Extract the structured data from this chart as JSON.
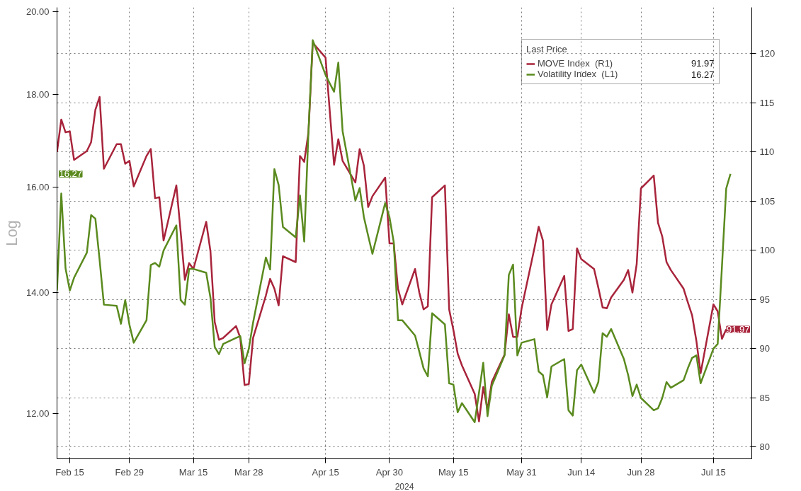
{
  "chart_data": {
    "type": "line",
    "xlabel": "2024",
    "ylabel": "Log",
    "legend_title": "Last Price",
    "legend": "top right",
    "grid": true,
    "log": true,
    "line_style": "solid",
    "marker": "none",
    "x": [
      "2024-02-12",
      "2024-02-13",
      "2024-02-14",
      "2024-02-15",
      "2024-02-16",
      "2024-02-19",
      "2024-02-20",
      "2024-02-21",
      "2024-02-22",
      "2024-02-23",
      "2024-02-26",
      "2024-02-27",
      "2024-02-28",
      "2024-02-29",
      "2024-03-01",
      "2024-03-04",
      "2024-03-05",
      "2024-03-06",
      "2024-03-07",
      "2024-03-08",
      "2024-03-11",
      "2024-03-12",
      "2024-03-13",
      "2024-03-14",
      "2024-03-15",
      "2024-03-18",
      "2024-03-19",
      "2024-03-20",
      "2024-03-21",
      "2024-03-22",
      "2024-03-25",
      "2024-03-26",
      "2024-03-27",
      "2024-03-28",
      "2024-03-29",
      "2024-04-01",
      "2024-04-02",
      "2024-04-03",
      "2024-04-04",
      "2024-04-05",
      "2024-04-08",
      "2024-04-09",
      "2024-04-10",
      "2024-04-11",
      "2024-04-12",
      "2024-04-15",
      "2024-04-16",
      "2024-04-17",
      "2024-04-18",
      "2024-04-19",
      "2024-04-22",
      "2024-04-23",
      "2024-04-24",
      "2024-04-25",
      "2024-04-26",
      "2024-04-29",
      "2024-04-30",
      "2024-05-01",
      "2024-05-02",
      "2024-05-03",
      "2024-05-06",
      "2024-05-07",
      "2024-05-08",
      "2024-05-09",
      "2024-05-10",
      "2024-05-13",
      "2024-05-14",
      "2024-05-15",
      "2024-05-16",
      "2024-05-17",
      "2024-05-20",
      "2024-05-21",
      "2024-05-22",
      "2024-05-23",
      "2024-05-24",
      "2024-05-27",
      "2024-05-28",
      "2024-05-29",
      "2024-05-30",
      "2024-05-31",
      "2024-06-03",
      "2024-06-04",
      "2024-06-05",
      "2024-06-06",
      "2024-06-07",
      "2024-06-10",
      "2024-06-11",
      "2024-06-12",
      "2024-06-13",
      "2024-06-14",
      "2024-06-17",
      "2024-06-18",
      "2024-06-19",
      "2024-06-20",
      "2024-06-21",
      "2024-06-24",
      "2024-06-25",
      "2024-06-26",
      "2024-06-27",
      "2024-06-28",
      "2024-07-01",
      "2024-07-02",
      "2024-07-03",
      "2024-07-04",
      "2024-07-05",
      "2024-07-08",
      "2024-07-09",
      "2024-07-10",
      "2024-07-11",
      "2024-07-12",
      "2024-07-15",
      "2024-07-16",
      "2024-07-17",
      "2024-07-18",
      "2024-07-19"
    ],
    "xlim": [
      "2024-02-12",
      "2024-07-24"
    ],
    "xticks": [
      {
        "value": "2024-02-15",
        "label": "Feb 15"
      },
      {
        "value": "2024-02-29",
        "label": "Feb 29"
      },
      {
        "value": "2024-03-15",
        "label": "Mar 15"
      },
      {
        "value": "2024-03-28",
        "label": "Mar 28"
      },
      {
        "value": "2024-04-15",
        "label": "Apr 15"
      },
      {
        "value": "2024-04-30",
        "label": "Apr 30"
      },
      {
        "value": "2024-05-15",
        "label": "May 15"
      },
      {
        "value": "2024-05-31",
        "label": "May 31"
      },
      {
        "value": "2024-06-14",
        "label": "Jun 14"
      },
      {
        "value": "2024-06-28",
        "label": "Jun 28"
      },
      {
        "value": "2024-07-15",
        "label": "Jul 15"
      }
    ],
    "ylim": [
      11.33,
      20.1
    ],
    "yticks": [
      {
        "value": 12,
        "label": "12.00"
      },
      {
        "value": 14,
        "label": "14.00"
      },
      {
        "value": 16,
        "label": "16.00"
      },
      {
        "value": 18,
        "label": "18.00"
      },
      {
        "value": 20,
        "label": "20.00"
      }
    ],
    "y2lim": [
      78.8,
      124.7
    ],
    "y2ticks": [
      80,
      85,
      90,
      95,
      100,
      105,
      110,
      115,
      120
    ],
    "series": [
      {
        "name": "MOVE Index  (R1)",
        "color": "#a8243b",
        "axis": "y2",
        "values": [
          110.0,
          113.3,
          112.0,
          112.1,
          109.2,
          110.1,
          111.0,
          114.3,
          115.6,
          108.3,
          110.8,
          110.8,
          108.8,
          109.1,
          106.5,
          109.6,
          110.3,
          105.3,
          105.4,
          101.0,
          106.6,
          101.9,
          97.0,
          98.7,
          98.1,
          102.9,
          99.9,
          92.7,
          90.9,
          91.1,
          92.3,
          91.1,
          86.3,
          86.4,
          91.1,
          95.4,
          97.1,
          96.1,
          94.4,
          99.4,
          98.8,
          109.6,
          109.0,
          112.0,
          121.1,
          119.6,
          114.1,
          108.7,
          111.3,
          109.1,
          106.9,
          110.3,
          108.6,
          104.4,
          105.5,
          107.4,
          100.7,
          100.7,
          96.1,
          94.5,
          98.1,
          95.7,
          94.0,
          94.3,
          105.4,
          106.6,
          94.0,
          91.9,
          89.5,
          88.3,
          85.4,
          82.6,
          86.1,
          83.8,
          86.6,
          89.4,
          93.5,
          91.2,
          91.2,
          94.1,
          100.2,
          102.4,
          101.0,
          91.9,
          94.5,
          97.4,
          91.8,
          92.0,
          100.2,
          99.1,
          98.1,
          96.2,
          94.2,
          94.1,
          95.2,
          97.0,
          98.0,
          95.7,
          98.6,
          106.3,
          107.6,
          102.8,
          101.4,
          98.8,
          98.0,
          96.1,
          94.7,
          93.4,
          90.8,
          87.5,
          94.5,
          93.8,
          91.0,
          91.97,
          null
        ]
      },
      {
        "name": "Volatility Index  (L1)",
        "color": "#5a8a1e",
        "axis": "y",
        "values": [
          14.03,
          15.87,
          14.43,
          14.03,
          14.26,
          14.72,
          15.44,
          15.37,
          14.58,
          13.78,
          13.76,
          13.45,
          13.86,
          13.43,
          13.13,
          13.51,
          14.49,
          14.53,
          14.46,
          14.76,
          15.24,
          13.86,
          13.78,
          14.42,
          14.42,
          14.35,
          13.9,
          13.06,
          12.94,
          13.11,
          13.21,
          13.24,
          12.79,
          13.03,
          13.47,
          14.63,
          14.41,
          16.37,
          16.04,
          15.21,
          15.01,
          15.83,
          14.93,
          17.18,
          19.28,
          18.45,
          18.25,
          18.06,
          18.74,
          17.18,
          15.73,
          15.98,
          15.4,
          15.04,
          14.7,
          15.68,
          15.4,
          14.92,
          13.51,
          13.51,
          13.25,
          12.98,
          12.71,
          12.58,
          13.63,
          13.44,
          12.47,
          12.45,
          12.02,
          12.16,
          11.87,
          12.32,
          12.8,
          11.96,
          12.43,
          12.92,
          14.31,
          14.5,
          12.92,
          13.13,
          13.19,
          12.66,
          12.6,
          12.25,
          12.74,
          12.86,
          12.05,
          11.97,
          12.68,
          12.77,
          12.32,
          12.49,
          13.29,
          13.23,
          13.36,
          12.86,
          12.6,
          12.27,
          12.45,
          12.24,
          12.05,
          12.08,
          12.24,
          12.49,
          12.4,
          12.52,
          12.71,
          12.88,
          12.92,
          12.47,
          13.03,
          13.11,
          14.46,
          15.97,
          16.27
        ]
      }
    ],
    "annotations": [
      "91.97",
      "16.27"
    ]
  }
}
